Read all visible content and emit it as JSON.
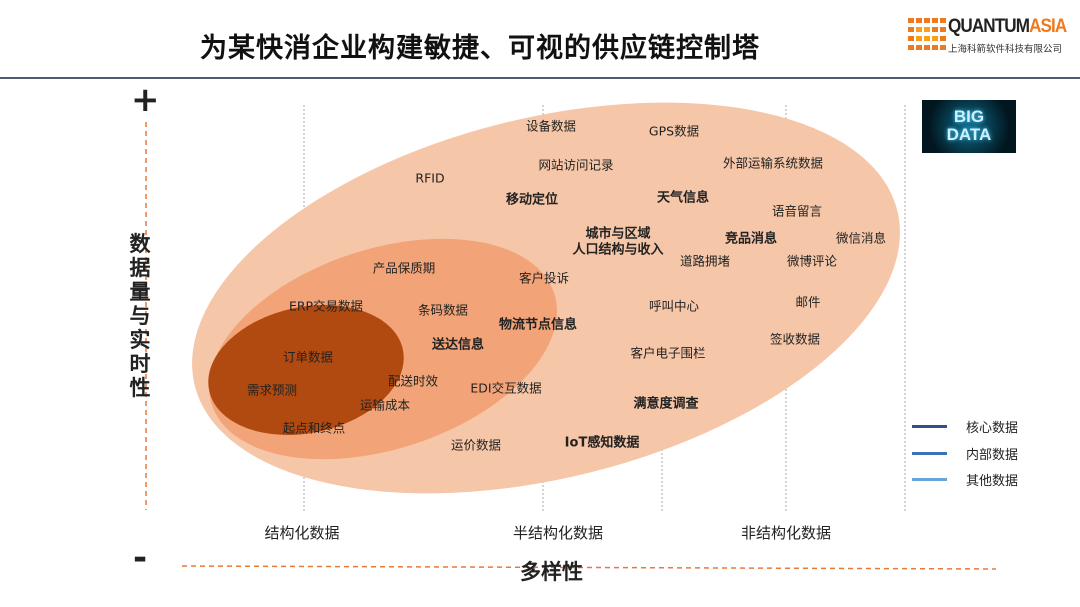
{
  "header": {
    "title": "为某快消企业构建敏捷、可视的供应链控制塔"
  },
  "logo": {
    "brand_a": "QUANTUM",
    "brand_b": "ASIA",
    "subtitle": "上海科箭软件科技有限公司"
  },
  "badge": {
    "line1": "BIG",
    "line2": "DATA"
  },
  "axes": {
    "y_plus": "+",
    "y_minus": "-",
    "y_label": "数据量与实时性",
    "x_label": "多样性"
  },
  "categories": [
    "结构化数据",
    "半结构化数据",
    "非结构化数据"
  ],
  "items": [
    {
      "text": "设备数据",
      "bold": false
    },
    {
      "text": "GPS数据",
      "bold": false
    },
    {
      "text": "网站访问记录",
      "bold": false
    },
    {
      "text": "外部运输系统数据",
      "bold": false
    },
    {
      "text": "RFID",
      "bold": false
    },
    {
      "text": "移动定位",
      "bold": true
    },
    {
      "text": "天气信息",
      "bold": true
    },
    {
      "text": "语音留言",
      "bold": false
    },
    {
      "text": "城市与区域",
      "bold": true
    },
    {
      "text": "人口结构与收入",
      "bold": true
    },
    {
      "text": "竞品消息",
      "bold": true
    },
    {
      "text": "微信消息",
      "bold": false
    },
    {
      "text": "道路拥堵",
      "bold": false
    },
    {
      "text": "微博评论",
      "bold": false
    },
    {
      "text": "产品保质期",
      "bold": false
    },
    {
      "text": "客户投诉",
      "bold": false
    },
    {
      "text": "ERP交易数据",
      "bold": false
    },
    {
      "text": "条码数据",
      "bold": false
    },
    {
      "text": "呼叫中心",
      "bold": false
    },
    {
      "text": "邮件",
      "bold": false
    },
    {
      "text": "物流节点信息",
      "bold": true
    },
    {
      "text": "送达信息",
      "bold": true
    },
    {
      "text": "签收数据",
      "bold": false
    },
    {
      "text": "订单数据",
      "bold": false
    },
    {
      "text": "客户电子围栏",
      "bold": false
    },
    {
      "text": "配送时效",
      "bold": false
    },
    {
      "text": "需求预测",
      "bold": false
    },
    {
      "text": "EDI交互数据",
      "bold": false
    },
    {
      "text": "运输成本",
      "bold": false
    },
    {
      "text": "满意度调查",
      "bold": true
    },
    {
      "text": "起点和终点",
      "bold": false
    },
    {
      "text": "运价数据",
      "bold": false
    },
    {
      "text": "IoT感知数据",
      "bold": true
    }
  ],
  "legend": [
    {
      "label": "核心数据",
      "color": "#2f4f8f"
    },
    {
      "label": "内部数据",
      "color": "#3a72b5"
    },
    {
      "label": "其他数据",
      "color": "#6aa3d8"
    }
  ],
  "colors": {
    "outer": "#f6c3a3",
    "middle": "#f2a478",
    "inner": "#b04a10",
    "axis_dash": "#e8793a"
  }
}
